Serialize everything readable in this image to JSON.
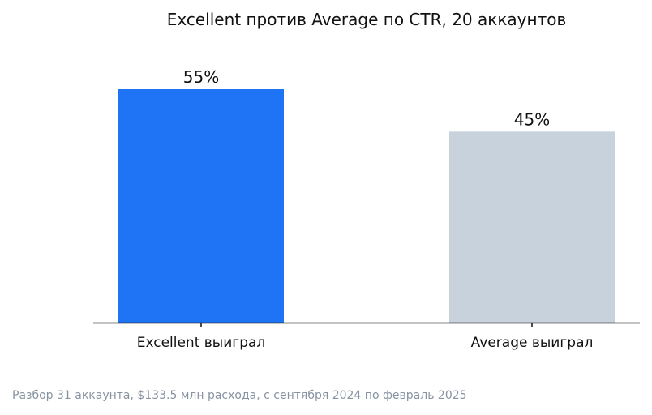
{
  "chart_data": {
    "type": "bar",
    "title": "Excellent против Average по CTR, 20 аккаунтов",
    "categories": [
      "Excellent выиграл",
      "Average выиграл"
    ],
    "values": [
      55,
      45
    ],
    "value_labels": [
      "55%",
      "45%"
    ],
    "colors": [
      "#1f74f6",
      "#c8d2dc"
    ],
    "ylim": [
      0,
      70
    ],
    "grid": false,
    "legend": "none",
    "xlabel": "",
    "ylabel": ""
  },
  "footnote": "Разбор 31 аккаунта, $133.5 млн расхода, с сентября 2024 по февраль 2025"
}
